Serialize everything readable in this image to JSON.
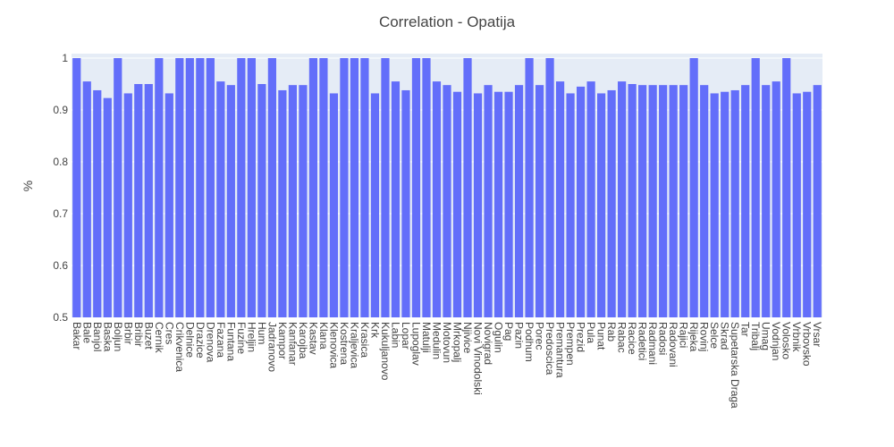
{
  "chart_data": {
    "type": "bar",
    "title": "Correlation - Opatija",
    "xlabel": "",
    "ylabel": "%",
    "ylim": [
      0.5,
      1.0
    ],
    "yticks": [
      0.5,
      0.6,
      0.7,
      0.8,
      0.9,
      1
    ],
    "ytick_labels": [
      "0.5",
      "0.6",
      "0.7",
      "0.8",
      "0.9",
      "1"
    ],
    "grid": true,
    "legend": "none",
    "colors": {
      "bar": "#636efa",
      "plot_bg": "#e5ecf6",
      "grid": "#ffffff",
      "text": "#444444"
    },
    "categories": [
      "Bakar",
      "Bale",
      "Banjol",
      "Baska",
      "Boljun",
      "Brbir",
      "Bribir",
      "Buzet",
      "Cernik",
      "Cres",
      "Crikvenica",
      "Delnice",
      "Drazice",
      "Drenova",
      "Fazana",
      "Funtana",
      "Fuzine",
      "Hreljin",
      "Hum",
      "Jadranovo",
      "Kampor",
      "Kanfanar",
      "Karojba",
      "Kastav",
      "Klana",
      "Klenovica",
      "Kostrena",
      "Kraljevica",
      "Krasica",
      "Krk",
      "Kukuljanovo",
      "Labin",
      "Lopar",
      "Lupoglav",
      "Matulji",
      "Medulin",
      "Motovun",
      "Mrkopalj",
      "Njivice",
      "Novi Vinodolski",
      "Novigrad",
      "Ogulin",
      "Pag",
      "Pazin",
      "Podhum",
      "Porec",
      "Predoscica",
      "Premantura",
      "Prempen",
      "Prezid",
      "Pula",
      "Punat",
      "Rab",
      "Rabac",
      "Racice",
      "Radetici",
      "Radmani",
      "Radosi",
      "Radovani",
      "Rajici",
      "Rijeka",
      "Rovinj",
      "Selce",
      "Skrad",
      "Supetarska Draga",
      "Tar",
      "Tribalj",
      "Umag",
      "Vodnjan",
      "Volosko",
      "Vrbnik",
      "Vrbovsko",
      "Vrsar"
    ],
    "values": [
      1.0,
      0.955,
      0.938,
      0.923,
      1.0,
      0.932,
      0.95,
      0.95,
      1.0,
      0.932,
      1.0,
      1.0,
      1.0,
      1.0,
      0.955,
      0.948,
      1.0,
      1.0,
      0.95,
      1.0,
      0.938,
      0.948,
      0.948,
      1.0,
      1.0,
      0.932,
      1.0,
      1.0,
      1.0,
      0.932,
      1.0,
      0.955,
      0.938,
      1.0,
      1.0,
      0.955,
      0.948,
      0.935,
      1.0,
      0.932,
      0.948,
      0.935,
      0.935,
      0.948,
      1.0,
      0.948,
      1.0,
      0.955,
      0.932,
      0.945,
      0.955,
      0.932,
      0.938,
      0.955,
      0.95,
      0.948,
      0.948,
      0.948,
      0.948,
      0.948,
      1.0,
      0.948,
      0.932,
      0.935,
      0.938,
      0.948,
      1.0,
      0.948,
      0.955,
      1.0,
      0.932,
      0.935,
      0.948
    ]
  }
}
